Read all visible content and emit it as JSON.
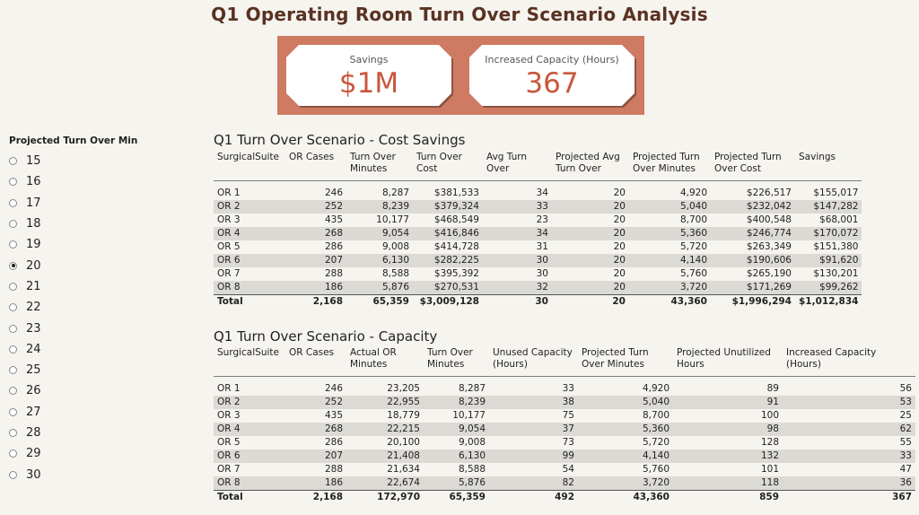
{
  "title": "Q1 Operating Room Turn Over Scenario Analysis",
  "kpis": {
    "savings_label": "Savings",
    "savings_value": "$1M",
    "capacity_label": "Increased Capacity (Hours)",
    "capacity_value": "367"
  },
  "filter": {
    "title": "Projected Turn Over Min",
    "selected": "20",
    "options": [
      "15",
      "16",
      "17",
      "18",
      "19",
      "20",
      "21",
      "22",
      "23",
      "24",
      "25",
      "26",
      "27",
      "28",
      "29",
      "30"
    ]
  },
  "cost": {
    "title": "Q1 Turn Over Scenario - Cost Savings",
    "headers": [
      "SurgicalSuite",
      "OR Cases",
      "Turn Over Minutes",
      "Turn Over Cost",
      "Avg Turn Over",
      "Projected Avg Turn Over",
      "Projected Turn Over Minutes",
      "Projected Turn Over Cost",
      "Savings"
    ],
    "rows": [
      [
        "OR 1",
        "246",
        "8,287",
        "$381,533",
        "34",
        "20",
        "4,920",
        "$226,517",
        "$155,017"
      ],
      [
        "OR 2",
        "252",
        "8,239",
        "$379,324",
        "33",
        "20",
        "5,040",
        "$232,042",
        "$147,282"
      ],
      [
        "OR 3",
        "435",
        "10,177",
        "$468,549",
        "23",
        "20",
        "8,700",
        "$400,548",
        "$68,001"
      ],
      [
        "OR 4",
        "268",
        "9,054",
        "$416,846",
        "34",
        "20",
        "5,360",
        "$246,774",
        "$170,072"
      ],
      [
        "OR 5",
        "286",
        "9,008",
        "$414,728",
        "31",
        "20",
        "5,720",
        "$263,349",
        "$151,380"
      ],
      [
        "OR 6",
        "207",
        "6,130",
        "$282,225",
        "30",
        "20",
        "4,140",
        "$190,606",
        "$91,620"
      ],
      [
        "OR 7",
        "288",
        "8,588",
        "$395,392",
        "30",
        "20",
        "5,760",
        "$265,190",
        "$130,201"
      ],
      [
        "OR 8",
        "186",
        "5,876",
        "$270,531",
        "32",
        "20",
        "3,720",
        "$171,269",
        "$99,262"
      ]
    ],
    "total": [
      "Total",
      "2,168",
      "65,359",
      "$3,009,128",
      "30",
      "20",
      "43,360",
      "$1,996,294",
      "$1,012,834"
    ]
  },
  "capacity": {
    "title": "Q1 Turn Over Scenario - Capacity",
    "headers": [
      "SurgicalSuite",
      "OR Cases",
      "Actual OR Minutes",
      "Turn Over Minutes",
      "Unused Capacity (Hours)",
      "Projected Turn Over Minutes",
      "Projected Unutilized Hours",
      "Increased Capacity (Hours)"
    ],
    "rows": [
      [
        "OR 1",
        "246",
        "23,205",
        "8,287",
        "33",
        "4,920",
        "89",
        "56"
      ],
      [
        "OR 2",
        "252",
        "22,955",
        "8,239",
        "38",
        "5,040",
        "91",
        "53"
      ],
      [
        "OR 3",
        "435",
        "18,779",
        "10,177",
        "75",
        "8,700",
        "100",
        "25"
      ],
      [
        "OR 4",
        "268",
        "22,215",
        "9,054",
        "37",
        "5,360",
        "98",
        "62"
      ],
      [
        "OR 5",
        "286",
        "20,100",
        "9,008",
        "73",
        "5,720",
        "128",
        "55"
      ],
      [
        "OR 6",
        "207",
        "21,408",
        "6,130",
        "99",
        "4,140",
        "132",
        "33"
      ],
      [
        "OR 7",
        "288",
        "21,634",
        "8,588",
        "54",
        "5,760",
        "101",
        "47"
      ],
      [
        "OR 8",
        "186",
        "22,674",
        "5,876",
        "82",
        "3,720",
        "118",
        "36"
      ]
    ],
    "total": [
      "Total",
      "2,168",
      "172,970",
      "65,359",
      "492",
      "43,360",
      "859",
      "367"
    ]
  }
}
